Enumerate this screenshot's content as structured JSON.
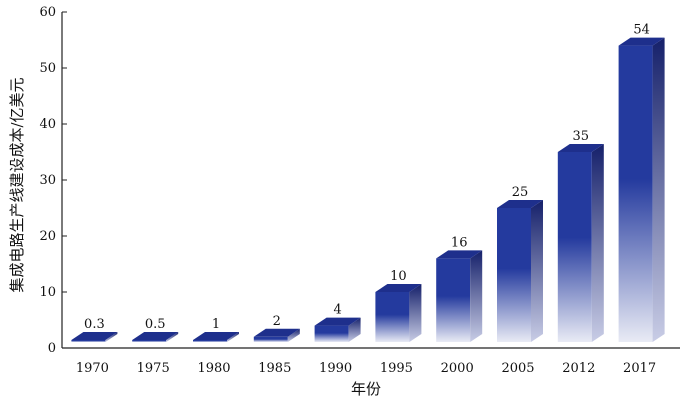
{
  "chart_data": {
    "type": "bar",
    "title": "",
    "xlabel": "年份",
    "ylabel": "集成电路生产线建设成本/亿美元",
    "categories": [
      "1970",
      "1975",
      "1980",
      "1985",
      "1990",
      "1995",
      "2000",
      "2005",
      "2012",
      "2017"
    ],
    "values": [
      0.3,
      0.5,
      1,
      2,
      4,
      10,
      16,
      25,
      35,
      54
    ],
    "data_labels": [
      "0.3",
      "0.5",
      "1",
      "2",
      "4",
      "10",
      "16",
      "25",
      "35",
      "54"
    ],
    "ylim": [
      0,
      60
    ],
    "yticks": [
      0,
      10,
      20,
      30,
      40,
      50,
      60
    ],
    "grid": false,
    "legend": "none",
    "colors": {
      "bar_top": "#1e2f8c",
      "bar_front_dark": "#243a9e",
      "bar_front_light": "#e9ebf5",
      "bar_side_dark": "#15206a",
      "bar_side_light": "#c9cde6",
      "axis": "#222222"
    }
  }
}
